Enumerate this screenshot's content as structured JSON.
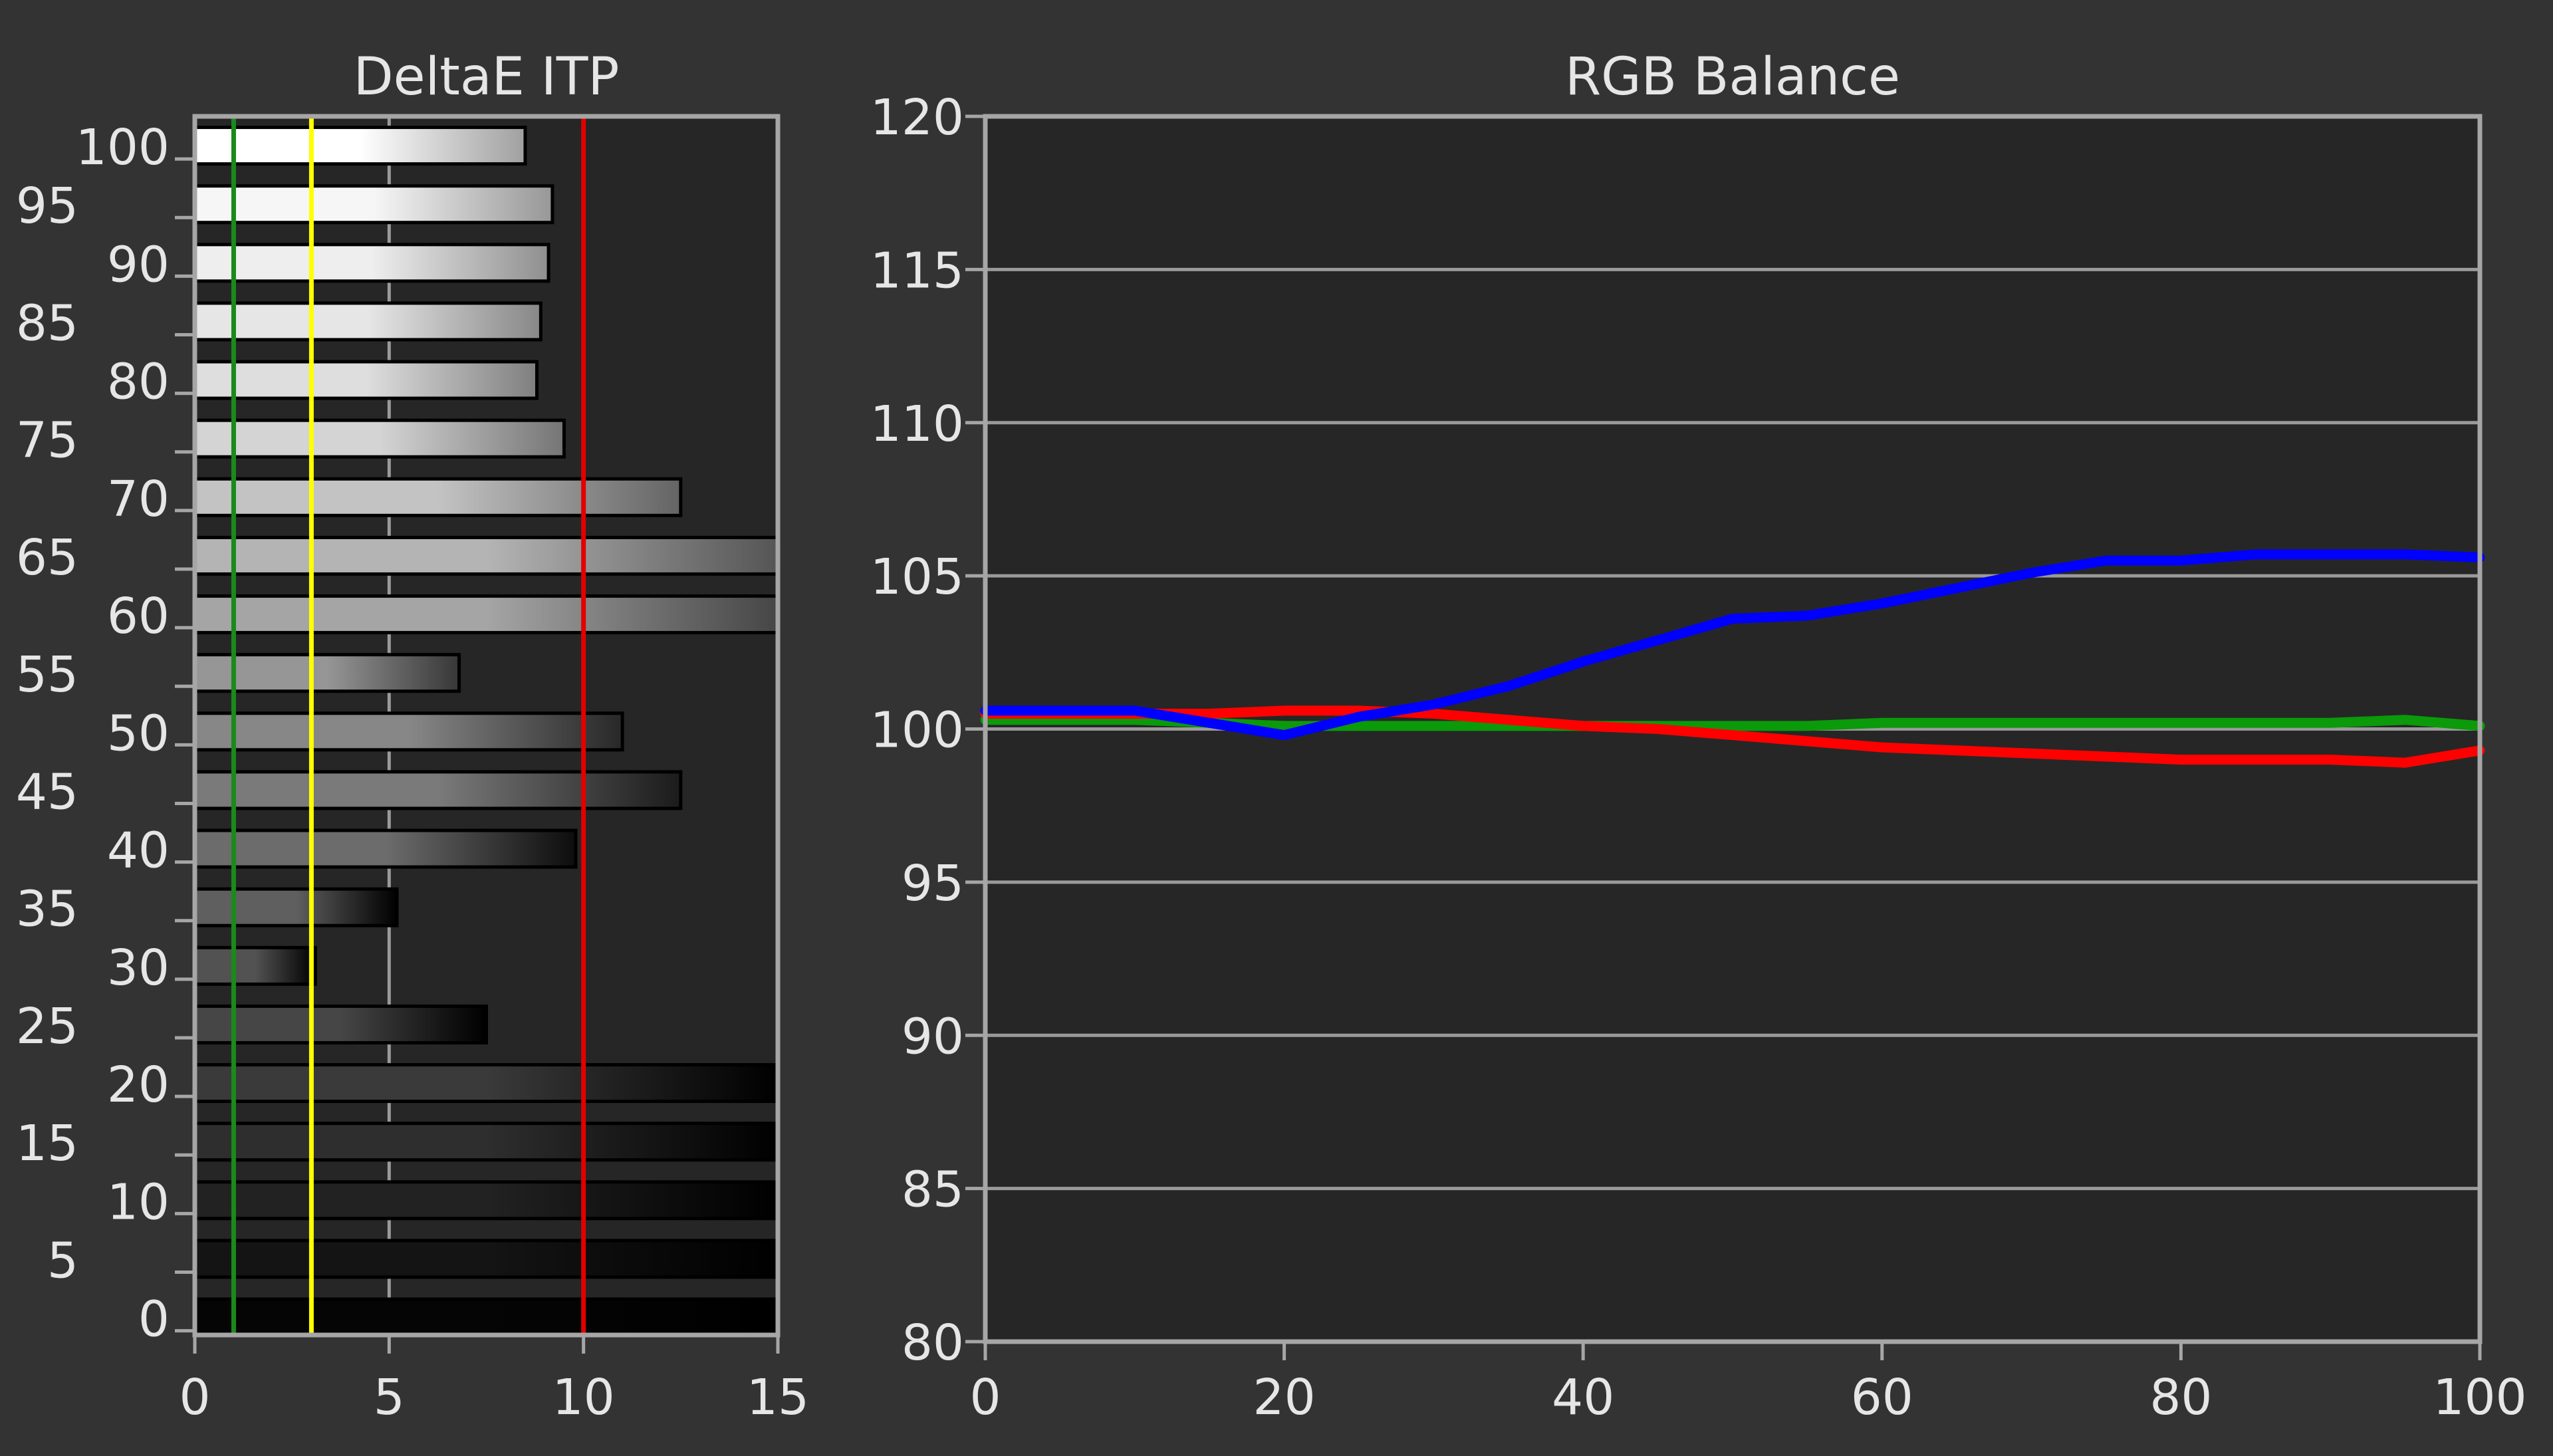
{
  "colors": {
    "background": "#333333",
    "plot_background": "#262626",
    "frame": "#a6a6a6",
    "grid": "#9a9a9a",
    "text": "#e6e6e6"
  },
  "chart_data": [
    {
      "type": "bar",
      "orientation": "horizontal",
      "title": "DeltaE ITP",
      "xlabel": "",
      "ylabel": "",
      "xlim": [
        0,
        15
      ],
      "ylim": [
        -1.5,
        102.5
      ],
      "x_ticks": [
        0,
        5,
        10,
        15
      ],
      "y_ticks": [
        0,
        5,
        10,
        15,
        20,
        25,
        30,
        35,
        40,
        45,
        50,
        55,
        60,
        65,
        70,
        75,
        80,
        85,
        90,
        95,
        100
      ],
      "x_grid": [
        5,
        10
      ],
      "categories": [
        100,
        95,
        90,
        85,
        80,
        75,
        70,
        65,
        60,
        55,
        50,
        45,
        40,
        35,
        30,
        25,
        20,
        15,
        10,
        5,
        0
      ],
      "values": [
        8.5,
        9.2,
        9.1,
        8.9,
        8.8,
        9.5,
        12.5,
        16,
        16,
        6.8,
        11,
        12.5,
        9.8,
        5.2,
        3.1,
        7.5,
        16,
        16,
        16,
        16,
        16
      ],
      "bar_gray": [
        255,
        246,
        238,
        230,
        222,
        212,
        195,
        180,
        165,
        150,
        135,
        122,
        108,
        95,
        82,
        70,
        58,
        46,
        34,
        20,
        5
      ],
      "thresholds": [
        {
          "value": 1,
          "color": "#1a8a1a"
        },
        {
          "value": 3,
          "color": "#ffff00"
        },
        {
          "value": 10,
          "color": "#e00000"
        }
      ]
    },
    {
      "type": "line",
      "title": "RGB Balance",
      "xlabel": "",
      "ylabel": "",
      "xlim": [
        0,
        100
      ],
      "ylim": [
        80,
        120
      ],
      "x_ticks": [
        0,
        20,
        40,
        60,
        80,
        100
      ],
      "y_ticks": [
        80,
        85,
        90,
        95,
        100,
        105,
        110,
        115,
        120
      ],
      "grid": true,
      "x": [
        0,
        5,
        10,
        15,
        20,
        25,
        30,
        35,
        40,
        45,
        50,
        55,
        60,
        65,
        70,
        75,
        80,
        85,
        90,
        95,
        100
      ],
      "series": [
        {
          "color": "#0a9a0a",
          "values": [
            100.3,
            100.3,
            100.3,
            100.2,
            100.1,
            100.1,
            100.1,
            100.1,
            100.1,
            100.1,
            100.1,
            100.1,
            100.2,
            100.2,
            100.2,
            100.2,
            100.2,
            100.2,
            100.2,
            100.3,
            100.1
          ]
        },
        {
          "color": "#ff0000",
          "values": [
            100.5,
            100.5,
            100.5,
            100.5,
            100.6,
            100.6,
            100.5,
            100.3,
            100.1,
            100.0,
            99.8,
            99.6,
            99.4,
            99.3,
            99.2,
            99.1,
            99.0,
            99.0,
            99.0,
            98.9,
            99.3
          ]
        },
        {
          "color": "#0000ff",
          "values": [
            100.6,
            100.6,
            100.6,
            100.2,
            99.8,
            100.4,
            100.8,
            101.4,
            102.2,
            102.9,
            103.6,
            103.7,
            104.1,
            104.6,
            105.1,
            105.5,
            105.5,
            105.7,
            105.7,
            105.7,
            105.6
          ]
        }
      ]
    }
  ]
}
